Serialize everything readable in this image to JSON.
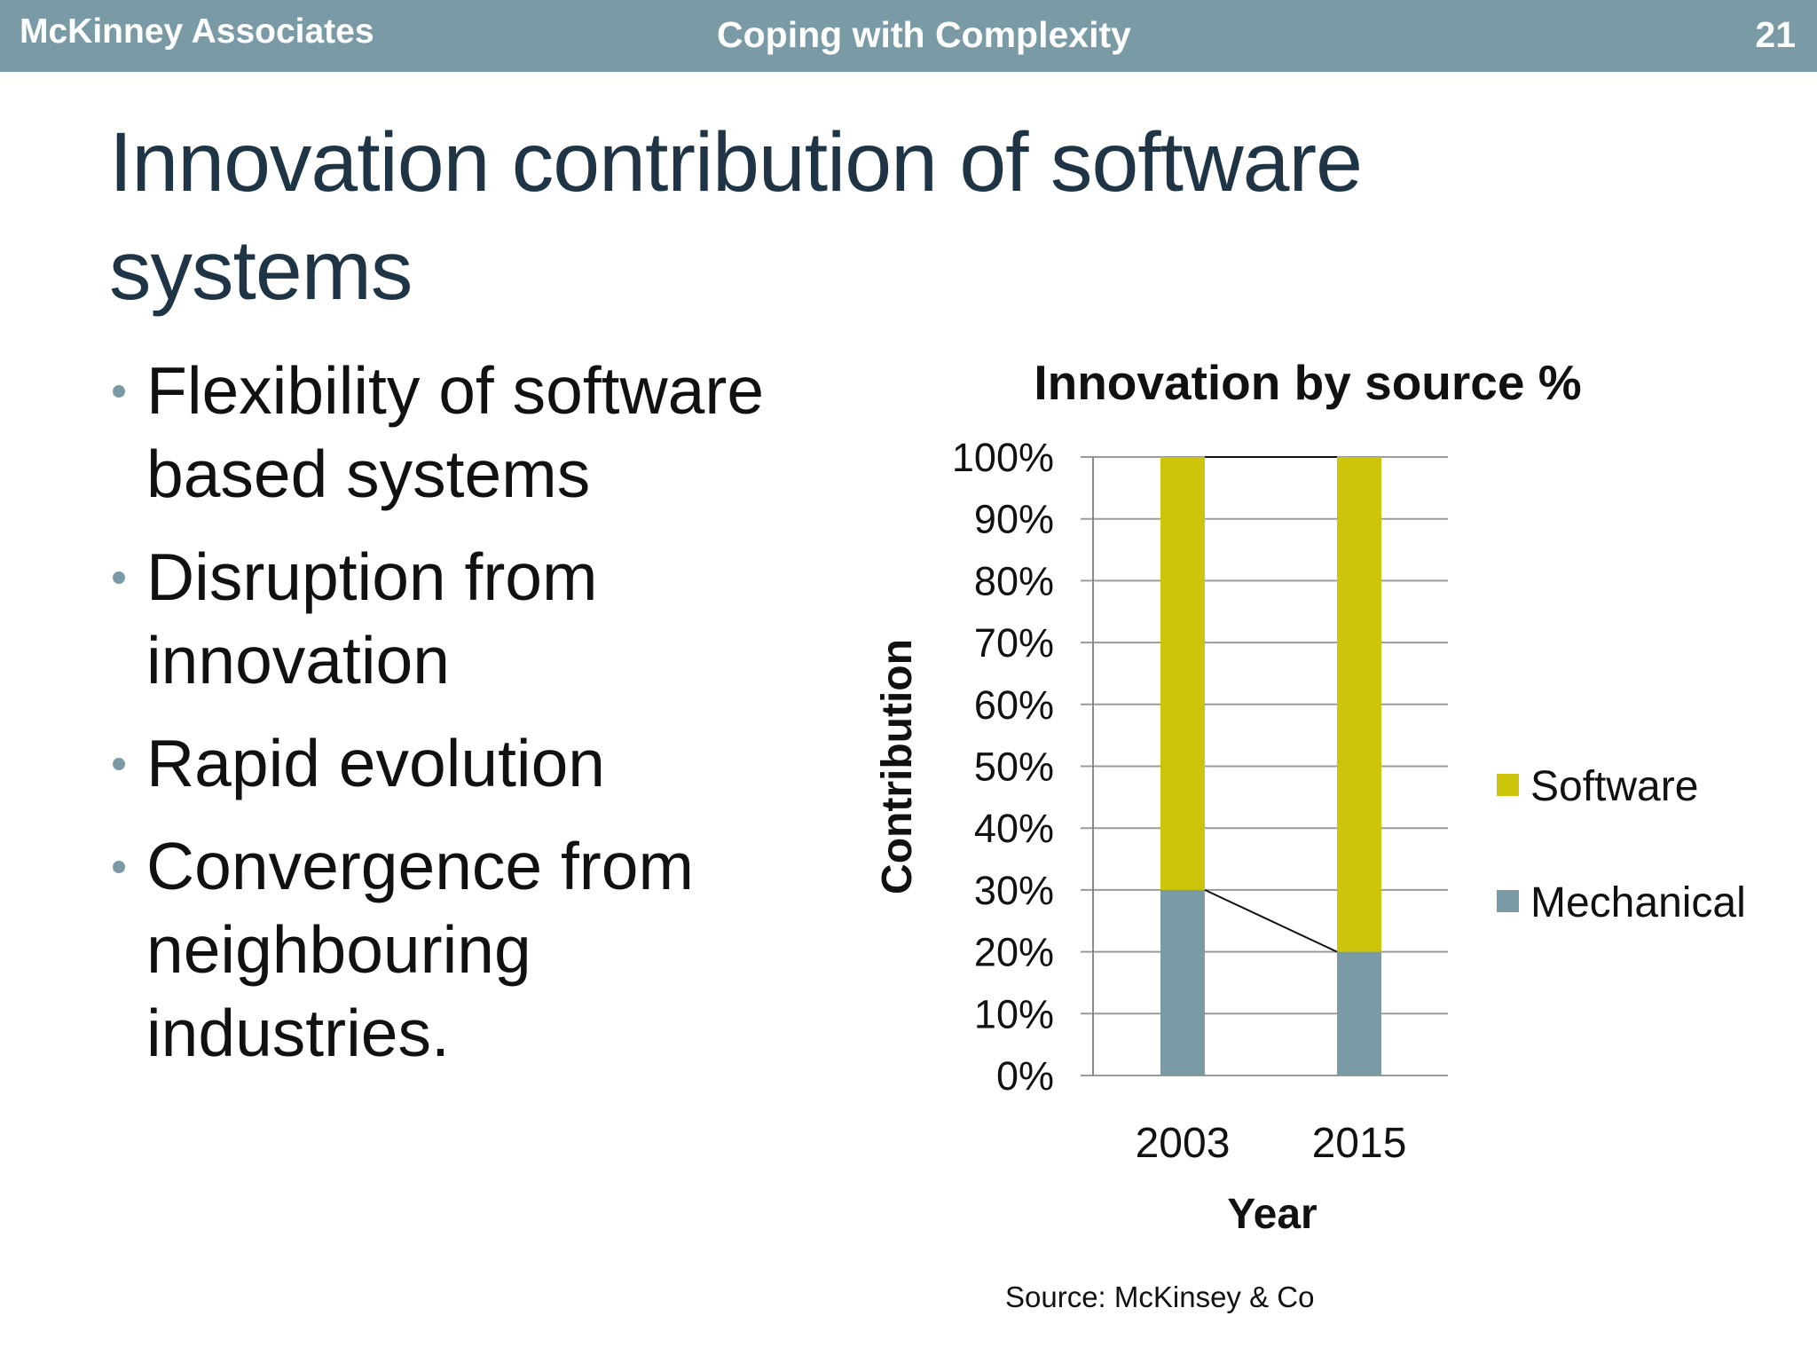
{
  "header": {
    "company": "McKinney Associates",
    "section": "Coping with Complexity",
    "page_number": "21"
  },
  "slide": {
    "title": "Innovation contribution of software systems",
    "bullets": [
      "Flexibility of software based systems",
      "Disruption from innovation",
      "Rapid evolution",
      "Convergence from neighbouring industries."
    ],
    "source": "Source: McKinsey & Co"
  },
  "colors": {
    "header_bar": "#7a9ba6",
    "software": "#cdc50a",
    "mechanical": "#7a9ba6"
  },
  "chart_data": {
    "type": "bar",
    "stacked": true,
    "percent_stacked": true,
    "title": "Innovation by source %",
    "xlabel": "Year",
    "ylabel": "Contribution",
    "categories": [
      "2003",
      "2015"
    ],
    "series": [
      {
        "name": "Mechanical",
        "values": [
          30,
          20
        ],
        "color": "#7a9ba6"
      },
      {
        "name": "Software",
        "values": [
          70,
          80
        ],
        "color": "#cdc50a"
      }
    ],
    "ylim": [
      0,
      100
    ],
    "yticks": [
      0,
      10,
      20,
      30,
      40,
      50,
      60,
      70,
      80,
      90,
      100
    ],
    "ytick_labels": [
      "0%",
      "10%",
      "20%",
      "30%",
      "40%",
      "50%",
      "60%",
      "70%",
      "80%",
      "90%",
      "100%"
    ],
    "series_lines": true,
    "grid": true,
    "legend": "right",
    "legend_order": [
      "Software",
      "Mechanical"
    ]
  }
}
